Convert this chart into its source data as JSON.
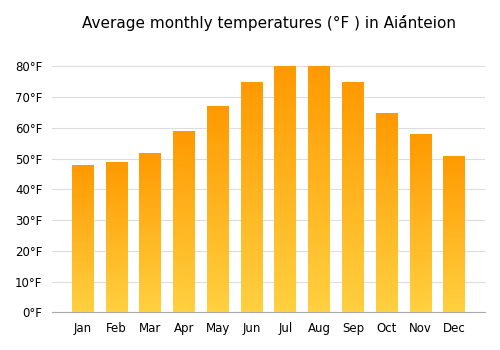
{
  "months": [
    "Jan",
    "Feb",
    "Mar",
    "Apr",
    "May",
    "Jun",
    "Jul",
    "Aug",
    "Sep",
    "Oct",
    "Nov",
    "Dec"
  ],
  "temperatures": [
    48,
    49,
    52,
    59,
    67,
    75,
    80,
    80,
    75,
    65,
    58,
    51
  ],
  "title": "Average monthly temperatures (°F ) in Aiánteion",
  "ylabel_ticks": [
    0,
    10,
    20,
    30,
    40,
    50,
    60,
    70,
    80
  ],
  "tick_labels": [
    "0°F",
    "10°F",
    "20°F",
    "30°F",
    "40°F",
    "50°F",
    "60°F",
    "70°F",
    "80°F"
  ],
  "bar_color_bottom": "#FFD040",
  "bar_color_top": "#FF9900",
  "ylim_max": 88,
  "background_color": "#ffffff",
  "grid_color": "#dddddd",
  "title_fontsize": 11,
  "tick_fontsize": 8.5
}
